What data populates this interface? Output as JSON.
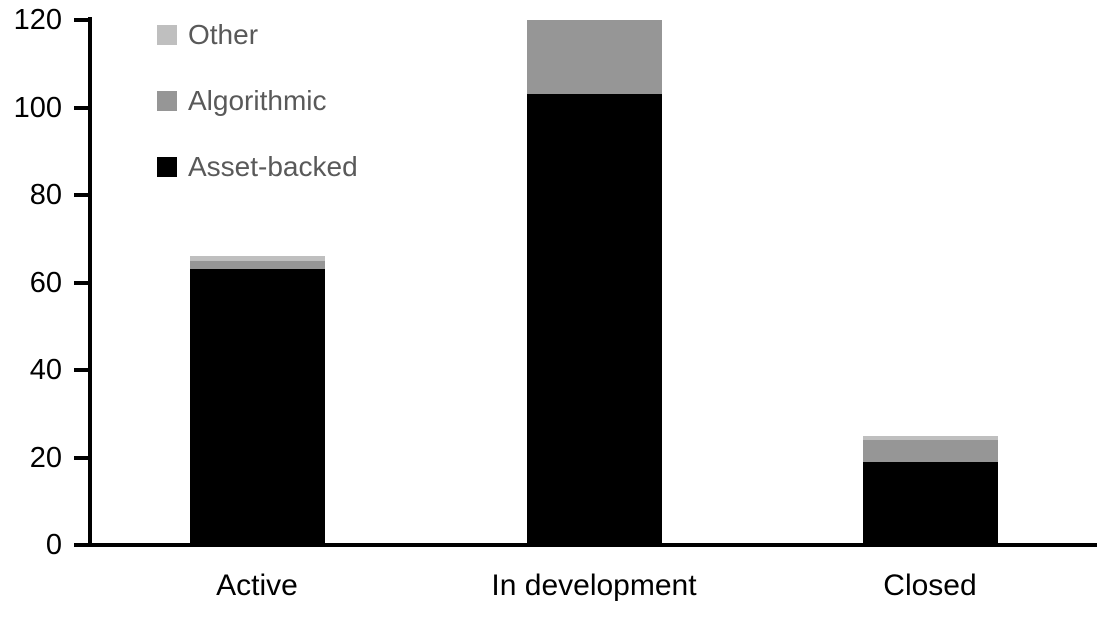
{
  "chart_data": {
    "type": "bar",
    "stacked": true,
    "title": "",
    "xlabel": "",
    "ylabel": "",
    "categories": [
      "Active",
      "In development",
      "Closed"
    ],
    "series": [
      {
        "name": "Asset-backed",
        "color": "#000000",
        "values": [
          63,
          103,
          19
        ]
      },
      {
        "name": "Algorithmic",
        "color": "#969696",
        "values": [
          2,
          17,
          5
        ]
      },
      {
        "name": "Other",
        "color": "#bfbfbf",
        "values": [
          1,
          0,
          1
        ]
      }
    ],
    "stack_totals": [
      66,
      120,
      25
    ],
    "ylim": [
      0,
      120
    ],
    "yticks": [
      0,
      20,
      40,
      60,
      80,
      100,
      120
    ],
    "grid": false,
    "legend_position": "top-left",
    "legend_order": [
      "Other",
      "Algorithmic",
      "Asset-backed"
    ]
  },
  "styles": {
    "background": "#ffffff",
    "axis_color": "#000000",
    "tick_label_color": "#000000",
    "legend_text_color": "#595959"
  }
}
